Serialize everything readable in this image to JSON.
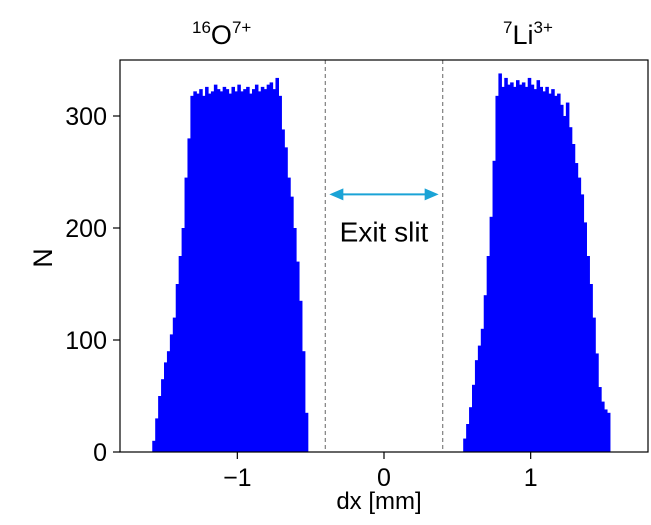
{
  "chart_data": {
    "type": "bar",
    "title": "",
    "xlabel": "dx [mm]",
    "ylabel": "N",
    "xlim": [
      -1.8,
      1.8
    ],
    "ylim": [
      0,
      350
    ],
    "xticks": [
      -1,
      0,
      1
    ],
    "xtick_labels": [
      "−1",
      "0",
      "1"
    ],
    "yticks": [
      0,
      100,
      200,
      300
    ],
    "ytick_labels": [
      "0",
      "100",
      "200",
      "300"
    ],
    "grid": false,
    "bar_color": "#0000ff",
    "bin_width": 0.02,
    "histograms": [
      {
        "bins_start": [
          -1.58,
          -1.56,
          -1.54,
          -1.52,
          -1.5,
          -1.48,
          -1.46,
          -1.44,
          -1.42,
          -1.4,
          -1.38,
          -1.36,
          -1.34,
          -1.32,
          -1.3,
          -1.28,
          -1.26,
          -1.24,
          -1.22,
          -1.2,
          -1.18,
          -1.16,
          -1.14,
          -1.12,
          -1.1,
          -1.08,
          -1.06,
          -1.04,
          -1.02,
          -1.0,
          -0.98,
          -0.96,
          -0.94,
          -0.92,
          -0.9,
          -0.88,
          -0.86,
          -0.84,
          -0.82,
          -0.8,
          -0.78,
          -0.76,
          -0.74,
          -0.72,
          -0.7,
          -0.68,
          -0.66,
          -0.64,
          -0.62,
          -0.6,
          -0.58,
          -0.56,
          -0.54
        ],
        "values": [
          10,
          30,
          50,
          65,
          80,
          90,
          105,
          120,
          150,
          175,
          200,
          245,
          280,
          318,
          322,
          320,
          324,
          318,
          326,
          320,
          322,
          328,
          324,
          322,
          326,
          324,
          320,
          326,
          322,
          328,
          322,
          324,
          326,
          320,
          324,
          328,
          322,
          326,
          324,
          328,
          330,
          324,
          334,
          318,
          288,
          272,
          245,
          228,
          200,
          170,
          135,
          90,
          35
        ]
      },
      {
        "bins_start": [
          0.54,
          0.56,
          0.58,
          0.6,
          0.62,
          0.64,
          0.66,
          0.68,
          0.7,
          0.72,
          0.74,
          0.76,
          0.78,
          0.8,
          0.82,
          0.84,
          0.86,
          0.88,
          0.9,
          0.92,
          0.94,
          0.96,
          0.98,
          1.0,
          1.02,
          1.04,
          1.06,
          1.08,
          1.1,
          1.12,
          1.14,
          1.16,
          1.18,
          1.2,
          1.22,
          1.24,
          1.26,
          1.28,
          1.3,
          1.32,
          1.34,
          1.36,
          1.38,
          1.4,
          1.42,
          1.44,
          1.46,
          1.48,
          1.5,
          1.52
        ],
        "values": [
          12,
          25,
          40,
          60,
          82,
          95,
          110,
          140,
          175,
          210,
          260,
          318,
          338,
          326,
          334,
          328,
          330,
          326,
          332,
          328,
          330,
          326,
          334,
          328,
          324,
          332,
          326,
          322,
          326,
          320,
          324,
          318,
          320,
          310,
          300,
          312,
          290,
          275,
          258,
          245,
          230,
          205,
          175,
          150,
          120,
          88,
          58,
          45,
          38,
          35
        ]
      }
    ],
    "annotations": {
      "slit_lines_x": [
        -0.4,
        0.4
      ],
      "arrow_y": 230,
      "arrow_color": "#1aa3d6",
      "slit_label": "Exit slit",
      "ion_left": {
        "sup": "16",
        "base": "O",
        "charge": "7+"
      },
      "ion_right": {
        "sup": "7",
        "base": "Li",
        "charge": "3+"
      }
    }
  }
}
